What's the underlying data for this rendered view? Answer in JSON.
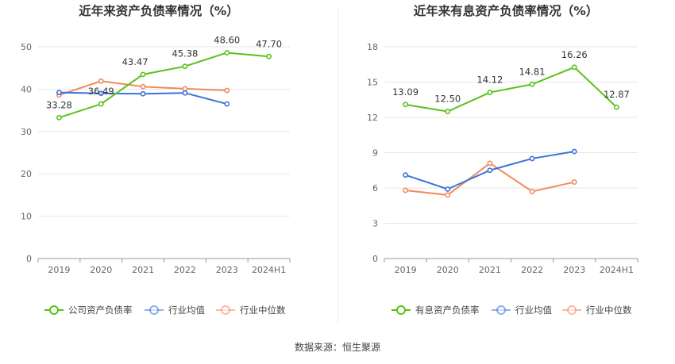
{
  "source_label": "数据来源：恒生聚源",
  "colors": {
    "company": "#58c21a",
    "industry_avg": "#3b73d8",
    "industry_median": "#f08a5d"
  },
  "chart_data": [
    {
      "type": "line",
      "title": "近年来资产负债率情况（%）",
      "categories": [
        "2019",
        "2020",
        "2021",
        "2022",
        "2023",
        "2024H1"
      ],
      "ylim": [
        0,
        50
      ],
      "yticks": [
        0,
        10,
        20,
        30,
        40,
        50
      ],
      "grid": true,
      "legend": "bottom",
      "series": [
        {
          "name": "公司资产负债率",
          "key": "company",
          "values": [
            33.28,
            36.49,
            43.47,
            45.38,
            48.6,
            47.7
          ],
          "labels": [
            "33.28",
            "36.49",
            "43.47",
            "45.38",
            "48.60",
            "47.70"
          ]
        },
        {
          "name": "行业均值",
          "key": "industry_avg",
          "values": [
            39.2,
            39.0,
            38.9,
            39.1,
            36.5,
            null
          ]
        },
        {
          "name": "行业中位数",
          "key": "industry_median",
          "values": [
            38.6,
            41.9,
            40.6,
            40.1,
            39.7,
            null
          ]
        }
      ]
    },
    {
      "type": "line",
      "title": "近年来有息资产负债率情况（%）",
      "categories": [
        "2019",
        "2020",
        "2021",
        "2022",
        "2023",
        "2024H1"
      ],
      "ylim": [
        0,
        18
      ],
      "yticks": [
        0,
        3,
        6,
        9,
        12,
        15,
        18
      ],
      "grid": true,
      "legend": "bottom",
      "series": [
        {
          "name": "有息资产负债率",
          "key": "company",
          "values": [
            13.09,
            12.5,
            14.12,
            14.81,
            16.26,
            12.87
          ],
          "labels": [
            "13.09",
            "12.50",
            "14.12",
            "14.81",
            "16.26",
            "12.87"
          ]
        },
        {
          "name": "行业均值",
          "key": "industry_avg",
          "values": [
            7.1,
            5.9,
            7.5,
            8.5,
            9.1,
            null
          ]
        },
        {
          "name": "行业中位数",
          "key": "industry_median",
          "values": [
            5.8,
            5.4,
            8.1,
            5.7,
            6.5,
            null
          ]
        }
      ]
    }
  ]
}
